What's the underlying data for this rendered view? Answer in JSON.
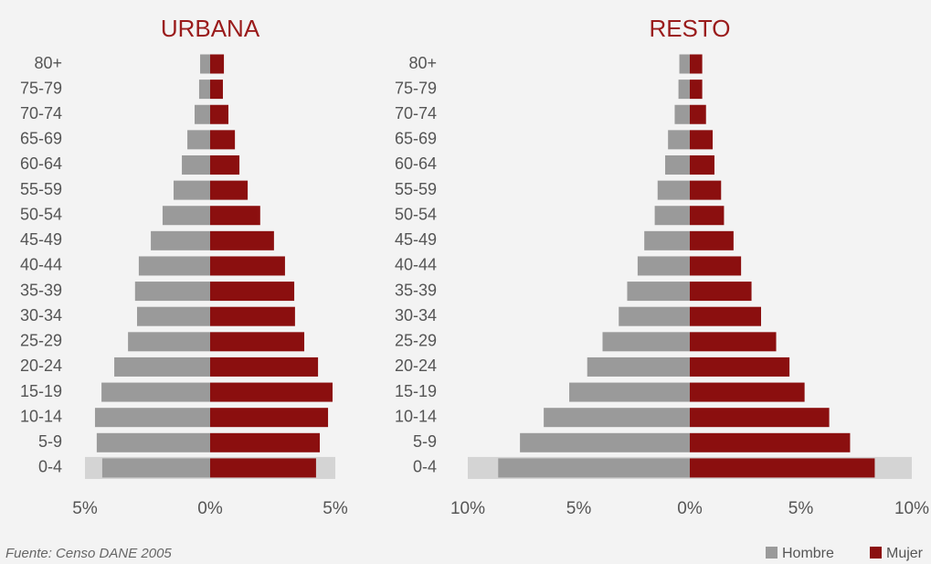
{
  "chart_data": [
    {
      "type": "pyramid",
      "title": "URBANA",
      "categories": [
        "80+",
        "75-79",
        "70-74",
        "65-69",
        "60-64",
        "55-59",
        "50-54",
        "45-49",
        "40-44",
        "35-39",
        "30-34",
        "25-29",
        "20-24",
        "15-19",
        "10-14",
        "5-9",
        "0-4"
      ],
      "series": [
        {
          "name": "Hombre",
          "color": "#9a9a9a",
          "side": "left",
          "values": [
            0.4,
            0.44,
            0.62,
            0.91,
            1.13,
            1.46,
            1.9,
            2.37,
            2.85,
            3.0,
            2.92,
            3.28,
            3.83,
            4.34,
            4.6,
            4.53,
            4.31
          ]
        },
        {
          "name": "Mujer",
          "color": "#8b0f0f",
          "side": "right",
          "values": [
            0.55,
            0.51,
            0.73,
            0.99,
            1.17,
            1.5,
            2.0,
            2.55,
            2.99,
            3.36,
            3.39,
            3.76,
            4.31,
            4.89,
            4.71,
            4.38,
            4.23
          ]
        }
      ],
      "xlim": [
        -5,
        5
      ],
      "xticks": [
        {
          "value": -5,
          "label": "5%"
        },
        {
          "value": 0,
          "label": "0%"
        },
        {
          "value": 5,
          "label": "5%"
        }
      ]
    },
    {
      "type": "pyramid",
      "title": "RESTO",
      "categories": [
        "80+",
        "75-79",
        "70-74",
        "65-69",
        "60-64",
        "55-59",
        "50-54",
        "45-49",
        "40-44",
        "35-39",
        "30-34",
        "25-29",
        "20-24",
        "15-19",
        "10-14",
        "5-9",
        "0-4"
      ],
      "series": [
        {
          "name": "Hombre",
          "color": "#9a9a9a",
          "side": "left",
          "values": [
            0.47,
            0.51,
            0.68,
            0.98,
            1.11,
            1.45,
            1.58,
            2.05,
            2.35,
            2.82,
            3.2,
            3.93,
            4.62,
            5.43,
            6.58,
            7.65,
            8.63
          ]
        },
        {
          "name": "Mujer",
          "color": "#8b0f0f",
          "side": "right",
          "values": [
            0.56,
            0.56,
            0.73,
            1.03,
            1.11,
            1.41,
            1.54,
            1.97,
            2.31,
            2.78,
            3.21,
            3.89,
            4.49,
            5.17,
            6.28,
            7.22,
            8.33
          ]
        }
      ],
      "xlim": [
        -10,
        10
      ],
      "xticks": [
        {
          "value": -10,
          "label": "10%"
        },
        {
          "value": -5,
          "label": "5%"
        },
        {
          "value": 0,
          "label": "0%"
        },
        {
          "value": 5,
          "label": "5%"
        },
        {
          "value": 10,
          "label": "10%"
        }
      ]
    }
  ],
  "source": "Fuente: Censo DANE 2005"
}
